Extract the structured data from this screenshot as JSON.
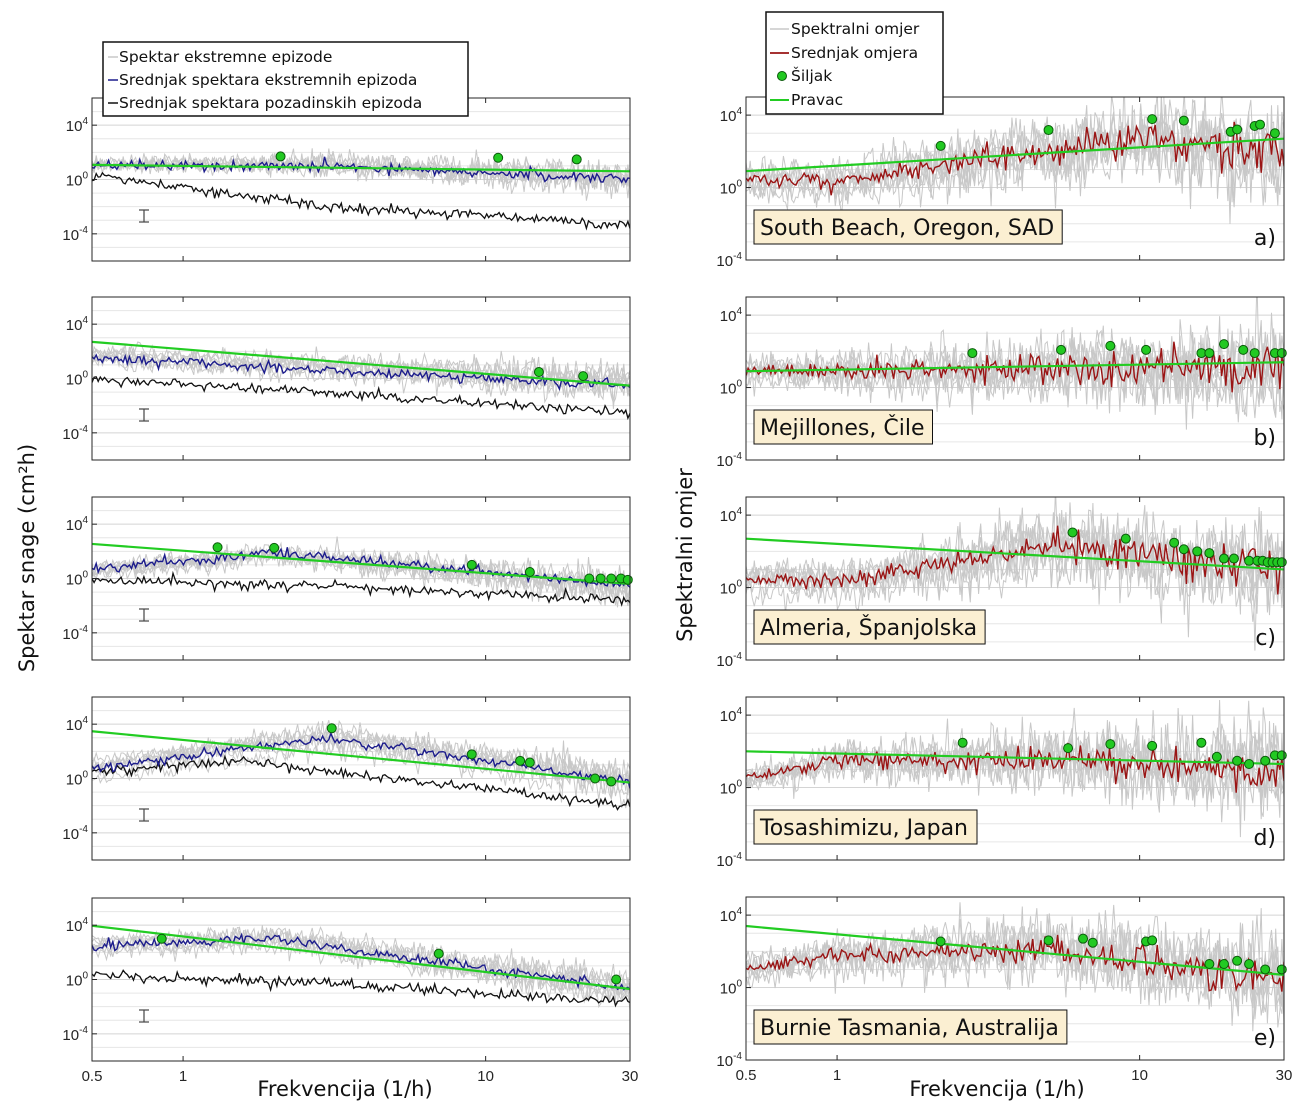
{
  "xlabel_left": "Frekvencija (1/h)",
  "xlabel_right": "Frekvencija (1/h)",
  "ylabel_left": "Spektar snage (cm²h)",
  "ylabel_right": "Spektralni omjer",
  "legend_left": [
    "Spektar ekstremne epizode",
    "Srednjak spektara ekstremnih epizoda",
    "Srednjak spektara pozadinskih epizoda"
  ],
  "legend_right": [
    "Spektralni omjer",
    "Srednjak omjera",
    "Šiljak",
    "Pravac"
  ],
  "colors": {
    "individual": "#c8c8c8",
    "extreme_mean": "#1c1c8c",
    "background_mean": "#111111",
    "ratio_mean": "#9a1414",
    "fit": "#22cc22",
    "peak": "#22c922",
    "location_box": "#fbefd2"
  },
  "chart_data": [
    {
      "type": "line",
      "panel": "left-1",
      "xscale": "log",
      "yscale": "log",
      "xlim": [
        0.5,
        30
      ],
      "ylim": [
        1e-06,
        1000000
      ],
      "xticks": [
        "0.5",
        "1",
        "10",
        "30"
      ],
      "yticks": [
        "10^4",
        "10^0",
        "10^-4"
      ],
      "fit_line": [
        [
          0.5,
          12
        ],
        [
          30,
          4
        ]
      ],
      "peaks": [
        [
          2.1,
          50
        ],
        [
          11,
          40
        ],
        [
          20,
          30
        ]
      ],
      "extreme_mean_trend": [
        [
          0.5,
          10
        ],
        [
          3,
          10
        ],
        [
          30,
          1
        ]
      ],
      "background_mean_trend": [
        [
          0.5,
          2
        ],
        [
          3,
          0.01
        ],
        [
          30,
          0.0005
        ]
      ]
    },
    {
      "type": "line",
      "panel": "left-2",
      "xscale": "log",
      "yscale": "log",
      "xlim": [
        0.5,
        30
      ],
      "ylim": [
        1e-06,
        1000000
      ],
      "xticks": [
        "0.5",
        "1",
        "10",
        "30"
      ],
      "yticks": [
        "10^4",
        "10^0",
        "10^-4"
      ],
      "fit_line": [
        [
          0.5,
          500
        ],
        [
          30,
          0.3
        ]
      ],
      "peaks": [
        [
          15,
          3
        ],
        [
          21,
          1.5
        ]
      ],
      "extreme_mean_trend": [
        [
          0.5,
          30
        ],
        [
          30,
          0.3
        ]
      ],
      "background_mean_trend": [
        [
          0.5,
          1
        ],
        [
          30,
          0.003
        ]
      ]
    },
    {
      "type": "line",
      "panel": "left-3",
      "xscale": "log",
      "yscale": "log",
      "xlim": [
        0.5,
        30
      ],
      "ylim": [
        1e-06,
        1000000
      ],
      "xticks": [
        "0.5",
        "1",
        "10",
        "30"
      ],
      "yticks": [
        "10^4",
        "10^0",
        "10^-4"
      ],
      "fit_line": [
        [
          0.5,
          350
        ],
        [
          30,
          0.4
        ]
      ],
      "peaks": [
        [
          1.3,
          200
        ],
        [
          2,
          180
        ],
        [
          9,
          10
        ],
        [
          14,
          3
        ],
        [
          22,
          1
        ],
        [
          24,
          1
        ],
        [
          26,
          1
        ],
        [
          28,
          1
        ],
        [
          29.5,
          0.8
        ]
      ],
      "extreme_mean_trend": [
        [
          0.5,
          5
        ],
        [
          2,
          80
        ],
        [
          30,
          0.3
        ]
      ],
      "background_mean_trend": [
        [
          0.5,
          0.7
        ],
        [
          3,
          0.3
        ],
        [
          30,
          0.02
        ]
      ]
    },
    {
      "type": "line",
      "panel": "left-4",
      "xscale": "log",
      "yscale": "log",
      "xlim": [
        0.5,
        30
      ],
      "ylim": [
        1e-06,
        1000000
      ],
      "xticks": [
        "0.5",
        "1",
        "10",
        "30"
      ],
      "yticks": [
        "10^4",
        "10^0",
        "10^-4"
      ],
      "fit_line": [
        [
          0.5,
          3000
        ],
        [
          30,
          0.5
        ]
      ],
      "peaks": [
        [
          3.1,
          5000
        ],
        [
          9,
          60
        ],
        [
          13,
          20
        ],
        [
          14,
          15
        ],
        [
          23,
          1
        ],
        [
          26,
          0.6
        ]
      ],
      "extreme_mean_trend": [
        [
          0.5,
          5
        ],
        [
          3,
          1000
        ],
        [
          30,
          0.5
        ]
      ],
      "background_mean_trend": [
        [
          0.5,
          3
        ],
        [
          1.5,
          20
        ],
        [
          30,
          0.01
        ]
      ]
    },
    {
      "type": "line",
      "panel": "left-5",
      "xscale": "log",
      "yscale": "log",
      "xlim": [
        0.5,
        30
      ],
      "ylim": [
        1e-06,
        1000000
      ],
      "xticks": [
        "0.5",
        "1",
        "10",
        "30"
      ],
      "yticks": [
        "10^4",
        "10^0",
        "10^-4"
      ],
      "fit_line": [
        [
          0.5,
          9000
        ],
        [
          30,
          0.2
        ]
      ],
      "peaks": [
        [
          0.85,
          1000
        ],
        [
          7,
          80
        ],
        [
          27,
          1
        ]
      ],
      "extreme_mean_trend": [
        [
          0.5,
          300
        ],
        [
          2,
          1000
        ],
        [
          30,
          0.2
        ]
      ],
      "background_mean_trend": [
        [
          0.5,
          2
        ],
        [
          3,
          0.5
        ],
        [
          30,
          0.02
        ]
      ]
    },
    {
      "type": "line",
      "panel": "right-a",
      "xscale": "log",
      "yscale": "log",
      "xlim": [
        0.5,
        30
      ],
      "ylim": [
        0.0001,
        100000
      ],
      "xticks": [
        "0.5",
        "1",
        "10",
        "30"
      ],
      "yticks": [
        "10^4",
        "10^0",
        "10^-4"
      ],
      "location": "South Beach, Oregon, SAD",
      "letter": "a)",
      "fit_line": [
        [
          0.5,
          8
        ],
        [
          30,
          500
        ]
      ],
      "peaks": [
        [
          2.2,
          200
        ],
        [
          5,
          1500
        ],
        [
          11,
          6000
        ],
        [
          14,
          5000
        ],
        [
          20,
          1200
        ],
        [
          21,
          1600
        ],
        [
          24,
          2500
        ],
        [
          25,
          3000
        ],
        [
          28,
          1000
        ]
      ],
      "ratio_mean_trend": [
        [
          0.5,
          3
        ],
        [
          1,
          2
        ],
        [
          3,
          40
        ],
        [
          10,
          500
        ],
        [
          30,
          80
        ]
      ]
    },
    {
      "type": "line",
      "panel": "right-b",
      "xscale": "log",
      "yscale": "log",
      "xlim": [
        0.5,
        30
      ],
      "ylim": [
        0.0001,
        100000
      ],
      "xticks": [
        "0.5",
        "1",
        "10",
        "30"
      ],
      "yticks": [
        "10^4",
        "10^0",
        "10^-4"
      ],
      "location": "Mejillones, Čile",
      "letter": "b)",
      "fit_line": [
        [
          0.5,
          8
        ],
        [
          30,
          25
        ]
      ],
      "peaks": [
        [
          2.8,
          80
        ],
        [
          5.5,
          120
        ],
        [
          8,
          200
        ],
        [
          10.5,
          120
        ],
        [
          16,
          80
        ],
        [
          17,
          80
        ],
        [
          19,
          250
        ],
        [
          22,
          120
        ],
        [
          24,
          80
        ],
        [
          28,
          80
        ],
        [
          29.5,
          80
        ]
      ],
      "ratio_mean_trend": [
        [
          0.5,
          8
        ],
        [
          30,
          15
        ]
      ]
    },
    {
      "type": "line",
      "panel": "right-c",
      "xscale": "log",
      "yscale": "log",
      "xlim": [
        0.5,
        30
      ],
      "ylim": [
        0.0001,
        100000
      ],
      "xticks": [
        "0.5",
        "1",
        "10",
        "30"
      ],
      "yticks": [
        "10^4",
        "10^0",
        "10^-4"
      ],
      "location": "Almeria, Španjolska",
      "letter": "c)",
      "fit_line": [
        [
          0.5,
          500
        ],
        [
          30,
          10
        ]
      ],
      "peaks": [
        [
          6,
          1100
        ],
        [
          9,
          500
        ],
        [
          13,
          300
        ],
        [
          14,
          130
        ],
        [
          15.5,
          100
        ],
        [
          17,
          80
        ],
        [
          19,
          40
        ],
        [
          20.5,
          40
        ],
        [
          23,
          30
        ],
        [
          24.5,
          30
        ],
        [
          25.5,
          30
        ],
        [
          26.5,
          25
        ],
        [
          27.5,
          25
        ],
        [
          28.5,
          25
        ],
        [
          29.5,
          25
        ]
      ],
      "ratio_mean_trend": [
        [
          0.5,
          3
        ],
        [
          1,
          2
        ],
        [
          5,
          200
        ],
        [
          30,
          8
        ]
      ]
    },
    {
      "type": "line",
      "panel": "right-d",
      "xscale": "log",
      "yscale": "log",
      "xlim": [
        0.5,
        30
      ],
      "ylim": [
        0.0001,
        100000
      ],
      "xticks": [
        "0.5",
        "1",
        "10",
        "30"
      ],
      "yticks": [
        "10^4",
        "10^0",
        "10^-4"
      ],
      "location": "Tosashimizu, Japan",
      "letter": "d)",
      "fit_line": [
        [
          0.5,
          100
        ],
        [
          30,
          20
        ]
      ],
      "peaks": [
        [
          2.6,
          300
        ],
        [
          5.8,
          150
        ],
        [
          8,
          250
        ],
        [
          11,
          200
        ],
        [
          16,
          300
        ],
        [
          18,
          50
        ],
        [
          21,
          30
        ],
        [
          23,
          20
        ],
        [
          26,
          30
        ],
        [
          28,
          60
        ],
        [
          29.5,
          60
        ]
      ],
      "ratio_mean_trend": [
        [
          0.5,
          3
        ],
        [
          1,
          30
        ],
        [
          5,
          40
        ],
        [
          30,
          10
        ]
      ]
    },
    {
      "type": "line",
      "panel": "right-e",
      "xscale": "log",
      "yscale": "log",
      "xlim": [
        0.5,
        30
      ],
      "ylim": [
        0.0001,
        100000
      ],
      "xticks": [
        "0.5",
        "1",
        "10",
        "30"
      ],
      "yticks": [
        "10^4",
        "10^0",
        "10^-4"
      ],
      "location": "Burnie Tasmania, Australija",
      "letter": "e)",
      "fit_line": [
        [
          0.5,
          2500
        ],
        [
          30,
          5
        ]
      ],
      "peaks": [
        [
          2.2,
          350
        ],
        [
          5,
          400
        ],
        [
          6.5,
          500
        ],
        [
          7,
          300
        ],
        [
          10.5,
          350
        ],
        [
          11,
          400
        ],
        [
          17,
          20
        ],
        [
          19,
          20
        ],
        [
          21,
          30
        ],
        [
          23,
          20
        ],
        [
          26,
          10
        ],
        [
          29.5,
          10
        ]
      ],
      "ratio_mean_trend": [
        [
          0.5,
          10
        ],
        [
          1,
          60
        ],
        [
          5,
          150
        ],
        [
          30,
          3
        ]
      ]
    }
  ]
}
